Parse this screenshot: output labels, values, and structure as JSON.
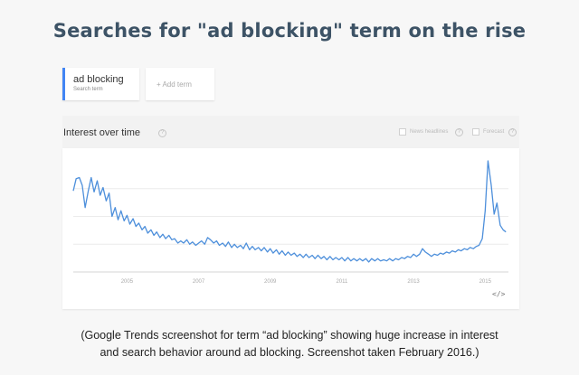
{
  "headline": "Searches for \"ad blocking\" term on the rise",
  "term": {
    "name": "ad blocking",
    "sublabel": "Search term"
  },
  "add_term_label": "+ Add term",
  "panel": {
    "title": "Interest over time",
    "news_headlines_label": "News headlines",
    "forecast_label": "Forecast",
    "embed_icon": "</>"
  },
  "chart_data": {
    "type": "line",
    "title": "Interest over time",
    "xlabel": "",
    "ylabel": "",
    "xlim": [
      2004.0,
      2016.15
    ],
    "ylim": [
      0,
      100
    ],
    "tick_labels": [
      "2005",
      "2007",
      "2009",
      "2011",
      "2013",
      "2015"
    ],
    "grid": true,
    "legend": "none",
    "color": "#4d8fdb",
    "points": [
      [
        2004.0,
        73
      ],
      [
        2004.08,
        84
      ],
      [
        2004.17,
        85
      ],
      [
        2004.25,
        78
      ],
      [
        2004.33,
        58
      ],
      [
        2004.42,
        73
      ],
      [
        2004.5,
        85
      ],
      [
        2004.58,
        72
      ],
      [
        2004.67,
        82
      ],
      [
        2004.75,
        69
      ],
      [
        2004.83,
        76
      ],
      [
        2004.92,
        64
      ],
      [
        2005.0,
        71
      ],
      [
        2005.08,
        50
      ],
      [
        2005.17,
        58
      ],
      [
        2005.25,
        47
      ],
      [
        2005.33,
        55
      ],
      [
        2005.42,
        46
      ],
      [
        2005.5,
        51
      ],
      [
        2005.58,
        43
      ],
      [
        2005.67,
        48
      ],
      [
        2005.75,
        41
      ],
      [
        2005.83,
        44
      ],
      [
        2005.92,
        38
      ],
      [
        2006.0,
        41
      ],
      [
        2006.08,
        35
      ],
      [
        2006.17,
        38
      ],
      [
        2006.25,
        33
      ],
      [
        2006.33,
        36
      ],
      [
        2006.42,
        31
      ],
      [
        2006.5,
        34
      ],
      [
        2006.58,
        30
      ],
      [
        2006.67,
        33
      ],
      [
        2006.75,
        29
      ],
      [
        2006.83,
        30
      ],
      [
        2006.92,
        26
      ],
      [
        2007.0,
        28
      ],
      [
        2007.08,
        26
      ],
      [
        2007.17,
        29
      ],
      [
        2007.25,
        25
      ],
      [
        2007.33,
        27
      ],
      [
        2007.42,
        24
      ],
      [
        2007.5,
        26
      ],
      [
        2007.58,
        28
      ],
      [
        2007.67,
        25
      ],
      [
        2007.75,
        31
      ],
      [
        2007.83,
        29
      ],
      [
        2007.92,
        26
      ],
      [
        2008.0,
        28
      ],
      [
        2008.08,
        24
      ],
      [
        2008.17,
        26
      ],
      [
        2008.25,
        23
      ],
      [
        2008.33,
        27
      ],
      [
        2008.42,
        22
      ],
      [
        2008.5,
        25
      ],
      [
        2008.58,
        22
      ],
      [
        2008.67,
        24
      ],
      [
        2008.75,
        21
      ],
      [
        2008.83,
        26
      ],
      [
        2008.92,
        20
      ],
      [
        2009.0,
        23
      ],
      [
        2009.08,
        20
      ],
      [
        2009.17,
        22
      ],
      [
        2009.25,
        19
      ],
      [
        2009.33,
        22
      ],
      [
        2009.42,
        18
      ],
      [
        2009.5,
        21
      ],
      [
        2009.58,
        17
      ],
      [
        2009.67,
        20
      ],
      [
        2009.75,
        16
      ],
      [
        2009.83,
        19
      ],
      [
        2009.92,
        15
      ],
      [
        2010.0,
        18
      ],
      [
        2010.08,
        15
      ],
      [
        2010.17,
        17
      ],
      [
        2010.25,
        14
      ],
      [
        2010.33,
        16
      ],
      [
        2010.42,
        13
      ],
      [
        2010.5,
        16
      ],
      [
        2010.58,
        13
      ],
      [
        2010.67,
        15
      ],
      [
        2010.75,
        12
      ],
      [
        2010.83,
        15
      ],
      [
        2010.92,
        12
      ],
      [
        2011.0,
        14
      ],
      [
        2011.08,
        11
      ],
      [
        2011.17,
        14
      ],
      [
        2011.25,
        11
      ],
      [
        2011.33,
        13
      ],
      [
        2011.42,
        11
      ],
      [
        2011.5,
        13
      ],
      [
        2011.58,
        10
      ],
      [
        2011.67,
        13
      ],
      [
        2011.75,
        10
      ],
      [
        2011.83,
        12
      ],
      [
        2011.92,
        10
      ],
      [
        2012.0,
        12
      ],
      [
        2012.08,
        10
      ],
      [
        2012.17,
        12
      ],
      [
        2012.25,
        9
      ],
      [
        2012.33,
        12
      ],
      [
        2012.42,
        10
      ],
      [
        2012.5,
        12
      ],
      [
        2012.58,
        10
      ],
      [
        2012.67,
        11
      ],
      [
        2012.75,
        10
      ],
      [
        2012.83,
        12
      ],
      [
        2012.92,
        10
      ],
      [
        2013.0,
        12
      ],
      [
        2013.08,
        11
      ],
      [
        2013.17,
        13
      ],
      [
        2013.25,
        12
      ],
      [
        2013.33,
        14
      ],
      [
        2013.42,
        13
      ],
      [
        2013.5,
        16
      ],
      [
        2013.58,
        14
      ],
      [
        2013.67,
        16
      ],
      [
        2013.75,
        21
      ],
      [
        2013.83,
        18
      ],
      [
        2013.92,
        16
      ],
      [
        2014.0,
        14
      ],
      [
        2014.08,
        16
      ],
      [
        2014.17,
        15
      ],
      [
        2014.25,
        17
      ],
      [
        2014.33,
        16
      ],
      [
        2014.42,
        18
      ],
      [
        2014.5,
        17
      ],
      [
        2014.58,
        19
      ],
      [
        2014.67,
        18
      ],
      [
        2014.75,
        20
      ],
      [
        2014.83,
        19
      ],
      [
        2014.92,
        21
      ],
      [
        2015.0,
        20
      ],
      [
        2015.08,
        22
      ],
      [
        2015.17,
        21
      ],
      [
        2015.25,
        23
      ],
      [
        2015.33,
        24
      ],
      [
        2015.42,
        30
      ],
      [
        2015.5,
        55
      ],
      [
        2015.58,
        100
      ],
      [
        2015.67,
        78
      ],
      [
        2015.75,
        52
      ],
      [
        2015.83,
        62
      ],
      [
        2015.92,
        42
      ],
      [
        2016.0,
        38
      ],
      [
        2016.08,
        36
      ]
    ]
  }
}
